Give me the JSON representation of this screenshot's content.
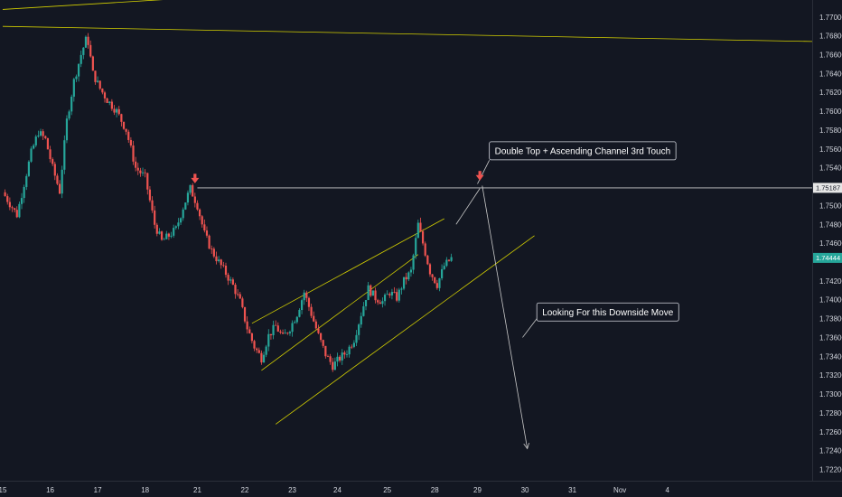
{
  "chart_data": {
    "type": "candlestick",
    "title": "",
    "ylim": [
      1.7208,
      1.7718
    ],
    "xlim": [
      15.0,
      32.05
    ],
    "grid": false,
    "colors": {
      "background": "#131722",
      "up": "#26a69a",
      "down": "#ef5350",
      "trendline": "#d4d000",
      "resistance": "#c9c9c9",
      "projection": "#c9c9c9",
      "arrow": "#ef5350",
      "tag_resistance": "#e6e6e6",
      "tag_price": "#26a69a"
    },
    "y_ticks": [
      "1.77000",
      "1.76800",
      "1.76600",
      "1.76400",
      "1.76200",
      "1.76000",
      "1.75800",
      "1.75600",
      "1.75400",
      "1.75000",
      "1.74800",
      "1.74600",
      "1.74200",
      "1.74000",
      "1.73800",
      "1.73600",
      "1.73400",
      "1.73200",
      "1.73000",
      "1.72800",
      "1.72600",
      "1.72400",
      "1.72200"
    ],
    "x_ticks": [
      {
        "label": "15",
        "x": 15.0
      },
      {
        "label": "16",
        "x": 16.0
      },
      {
        "label": "17",
        "x": 17.0
      },
      {
        "label": "18",
        "x": 18.0
      },
      {
        "label": "21",
        "x": 19.1
      },
      {
        "label": "22",
        "x": 20.1
      },
      {
        "label": "23",
        "x": 21.1
      },
      {
        "label": "24",
        "x": 22.05
      },
      {
        "label": "25",
        "x": 23.1
      },
      {
        "label": "28",
        "x": 24.1
      },
      {
        "label": "29",
        "x": 25.0
      },
      {
        "label": "30",
        "x": 26.0
      },
      {
        "label": "31",
        "x": 27.0
      },
      {
        "label": "Nov",
        "x": 28.0
      },
      {
        "label": "4",
        "x": 29.0
      }
    ],
    "price_tags": [
      {
        "label": "1.75187",
        "y": 1.75187,
        "kind": "resistance"
      },
      {
        "label": "1.74444",
        "y": 1.74444,
        "kind": "price"
      }
    ],
    "series": [
      {
        "x": 15.0,
        "y": 1.7514
      },
      {
        "x": 15.15,
        "y": 1.7502
      },
      {
        "x": 15.3,
        "y": 1.749
      },
      {
        "x": 15.45,
        "y": 1.7523
      },
      {
        "x": 15.6,
        "y": 1.7556
      },
      {
        "x": 15.75,
        "y": 1.7578
      },
      {
        "x": 15.9,
        "y": 1.757
      },
      {
        "x": 16.05,
        "y": 1.754
      },
      {
        "x": 16.2,
        "y": 1.7515
      },
      {
        "x": 16.35,
        "y": 1.759
      },
      {
        "x": 16.5,
        "y": 1.7632
      },
      {
        "x": 16.65,
        "y": 1.766
      },
      {
        "x": 16.78,
        "y": 1.768
      },
      {
        "x": 16.9,
        "y": 1.764
      },
      {
        "x": 17.05,
        "y": 1.7624
      },
      {
        "x": 17.2,
        "y": 1.7612
      },
      {
        "x": 17.4,
        "y": 1.76
      },
      {
        "x": 17.6,
        "y": 1.758
      },
      {
        "x": 17.8,
        "y": 1.754
      },
      {
        "x": 18.0,
        "y": 1.753
      },
      {
        "x": 18.2,
        "y": 1.748
      },
      {
        "x": 18.35,
        "y": 1.7462
      },
      {
        "x": 18.5,
        "y": 1.7468
      },
      {
        "x": 18.65,
        "y": 1.7475
      },
      {
        "x": 18.8,
        "y": 1.7498
      },
      {
        "x": 18.95,
        "y": 1.7518
      },
      {
        "x": 19.1,
        "y": 1.75
      },
      {
        "x": 19.25,
        "y": 1.747
      },
      {
        "x": 19.4,
        "y": 1.7452
      },
      {
        "x": 19.55,
        "y": 1.744
      },
      {
        "x": 19.7,
        "y": 1.7428
      },
      {
        "x": 19.85,
        "y": 1.7415
      },
      {
        "x": 20.0,
        "y": 1.7398
      },
      {
        "x": 20.15,
        "y": 1.737
      },
      {
        "x": 20.3,
        "y": 1.735
      },
      {
        "x": 20.45,
        "y": 1.7338
      },
      {
        "x": 20.6,
        "y": 1.7362
      },
      {
        "x": 20.75,
        "y": 1.7372
      },
      {
        "x": 20.9,
        "y": 1.736
      },
      {
        "x": 21.05,
        "y": 1.737
      },
      {
        "x": 21.2,
        "y": 1.7385
      },
      {
        "x": 21.35,
        "y": 1.7408
      },
      {
        "x": 21.5,
        "y": 1.7385
      },
      {
        "x": 21.65,
        "y": 1.7362
      },
      {
        "x": 21.8,
        "y": 1.7342
      },
      {
        "x": 21.95,
        "y": 1.733
      },
      {
        "x": 22.1,
        "y": 1.7338
      },
      {
        "x": 22.25,
        "y": 1.7345
      },
      {
        "x": 22.4,
        "y": 1.7358
      },
      {
        "x": 22.55,
        "y": 1.7385
      },
      {
        "x": 22.7,
        "y": 1.7412
      },
      {
        "x": 22.85,
        "y": 1.7402
      },
      {
        "x": 23.0,
        "y": 1.7398
      },
      {
        "x": 23.15,
        "y": 1.7408
      },
      {
        "x": 23.3,
        "y": 1.7402
      },
      {
        "x": 23.45,
        "y": 1.742
      },
      {
        "x": 23.6,
        "y": 1.743
      },
      {
        "x": 23.75,
        "y": 1.748
      },
      {
        "x": 23.85,
        "y": 1.746
      },
      {
        "x": 24.0,
        "y": 1.743
      },
      {
        "x": 24.15,
        "y": 1.7416
      },
      {
        "x": 24.3,
        "y": 1.7436
      },
      {
        "x": 24.45,
        "y": 1.7444
      }
    ],
    "trendlines": [
      {
        "kind": "trendline",
        "from": [
          15.0,
          1.769
        ],
        "to": [
          32.05,
          1.7674
        ]
      },
      {
        "kind": "trendline",
        "from": [
          15.0,
          1.7708
        ],
        "to": [
          21.5,
          1.7728
        ]
      },
      {
        "kind": "channel-upper",
        "from": [
          20.25,
          1.7375
        ],
        "to": [
          24.3,
          1.7486
        ]
      },
      {
        "kind": "channel-middle",
        "from": [
          20.45,
          1.7325
        ],
        "to": [
          23.75,
          1.7448
        ]
      },
      {
        "kind": "channel-lower",
        "from": [
          20.75,
          1.7268
        ],
        "to": [
          26.2,
          1.7468
        ]
      },
      {
        "kind": "resistance",
        "from": [
          19.1,
          1.75187
        ],
        "to": [
          32.05,
          1.75187
        ]
      }
    ],
    "projection": {
      "from": [
        25.1,
        1.7521
      ],
      "to": [
        26.05,
        1.7242
      ]
    },
    "callout_lines": [
      {
        "from": [
          24.55,
          1.748
        ],
        "to": [
          25.05,
          1.7518
        ]
      },
      {
        "from": [
          25.0,
          1.7523
        ],
        "to": [
          25.25,
          1.7548
        ]
      },
      {
        "from": [
          25.95,
          1.736
        ],
        "to": [
          26.25,
          1.738
        ]
      }
    ],
    "signal_arrows": [
      {
        "x": 19.05,
        "y": 1.7525
      },
      {
        "x": 25.05,
        "y": 1.7528
      }
    ],
    "annotations": [
      {
        "id": "double-top",
        "text": "Double Top + Ascending Channel 3rd Touch",
        "x": 25.25,
        "y": 1.7558
      },
      {
        "id": "downside",
        "text": "Looking For this  Downside Move",
        "x": 26.25,
        "y": 1.7387
      }
    ]
  }
}
